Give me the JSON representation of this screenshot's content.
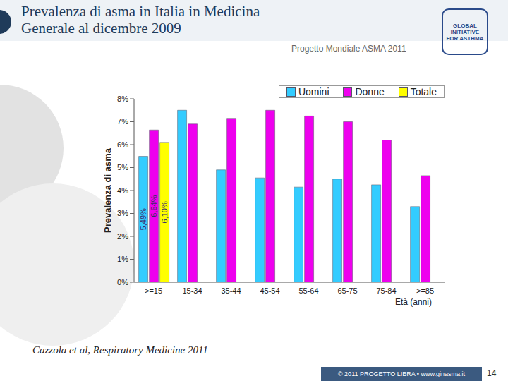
{
  "chart_data": {
    "type": "bar",
    "title": "Prevalenza di asma in Italia in Medicina Generale al dicembre 2009",
    "subtitle": "Progetto Mondiale ASMA 2011",
    "y_label": "Prevalenza di asma",
    "x_label": "Età (anni)",
    "categories": [
      ">=15",
      "15-34",
      "35-44",
      "45-54",
      "55-64",
      "65-75",
      "75-84",
      ">=85"
    ],
    "series": [
      {
        "name": "Uomini",
        "color": "#33ccff",
        "values": [
          5.49,
          7.5,
          4.9,
          4.55,
          4.15,
          4.5,
          4.25,
          3.3
        ],
        "value_labels": [
          "5,49%",
          null,
          null,
          null,
          null,
          null,
          null,
          null
        ]
      },
      {
        "name": "Donne",
        "color": "#ee00ee",
        "values": [
          6.64,
          6.9,
          7.15,
          7.5,
          7.25,
          7.0,
          6.2,
          4.65
        ],
        "value_labels": [
          "6,64%",
          null,
          null,
          null,
          null,
          null,
          null,
          null
        ]
      },
      {
        "name": "Totale",
        "color": "#ffff00",
        "values": [
          6.1,
          null,
          null,
          null,
          null,
          null,
          null,
          null
        ],
        "value_labels": [
          "6,10%",
          null,
          null,
          null,
          null,
          null,
          null,
          null
        ]
      }
    ],
    "ylim": [
      0,
      8
    ],
    "yticks": [
      {
        "value": 0,
        "label": "0%"
      },
      {
        "value": 1,
        "label": "1%"
      },
      {
        "value": 2,
        "label": "2%"
      },
      {
        "value": 3,
        "label": "3%"
      },
      {
        "value": 4,
        "label": "4%"
      },
      {
        "value": 5,
        "label": "5%"
      },
      {
        "value": 6,
        "label": "6%"
      },
      {
        "value": 7,
        "label": "7%"
      },
      {
        "value": 8,
        "label": "8%"
      }
    ],
    "grid": false,
    "legend": "top-right",
    "data_labels": true
  },
  "slide": {
    "source": "Cazzola et al, Respiratory Medicine 2011",
    "footer": "© 2011 PROGETTO LIBRA • www.ginasma.it",
    "page": 14,
    "logo": "GLOBAL INITIATIVE FOR ASTHMA"
  }
}
